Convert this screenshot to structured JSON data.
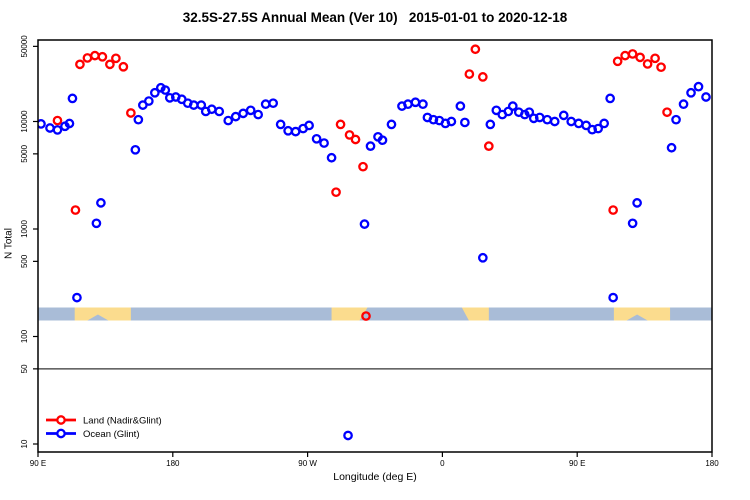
{
  "title": "32.5S-27.5S Annual Mean (Ver 10)   2015-01-01 to 2020-12-18",
  "y_axis": {
    "label": "N Total",
    "ticks": [
      10,
      50,
      100,
      500,
      1000,
      5000,
      10000,
      50000
    ]
  },
  "x_axis": {
    "label": "Longitude (deg E)",
    "ticks": [
      {
        "lon": 90,
        "text": "90 E"
      },
      {
        "lon": 180,
        "text": "180"
      },
      {
        "lon": 270,
        "text": "90 W"
      },
      {
        "lon": 360,
        "text": "0"
      },
      {
        "lon": 450,
        "text": "90 E"
      },
      {
        "lon": 540,
        "text": "180"
      }
    ]
  },
  "legend": [
    {
      "label": "Land (Nadir&Glint)",
      "color": "#FF0000"
    },
    {
      "label": "Ocean (Glint)",
      "color": "#0000FF"
    }
  ],
  "reference_line_n": 50,
  "map_strip": {
    "ocean_color": "#A9BCD7",
    "land_color": "#FBDC8E",
    "bands": [
      {
        "from": 114.5,
        "to": 152,
        "shape": "notch",
        "notch_from": 123,
        "notch_to": 137
      },
      {
        "from": 286,
        "to": 310,
        "shape": "slant-right"
      },
      {
        "from": 373,
        "to": 391,
        "shape": "slant-left"
      },
      {
        "from": 474.5,
        "to": 512,
        "shape": "notch",
        "notch_from": 483,
        "notch_to": 497
      }
    ]
  },
  "chart_data": {
    "type": "scatter",
    "x_unit": "longitude axis degrees (90E wrapping east to 180)",
    "y_scale": "log10",
    "xlim": [
      90,
      540
    ],
    "ylim": [
      8.4,
      57000
    ],
    "legend_position": "bottom-left",
    "series": [
      {
        "name": "Land (Nadir&Glint)",
        "color": "#FF0000",
        "points": [
          [
            103,
            10200
          ],
          [
            115,
            1500
          ],
          [
            118,
            34000
          ],
          [
            123,
            39000
          ],
          [
            128,
            41000
          ],
          [
            133,
            40000
          ],
          [
            138,
            34000
          ],
          [
            142,
            38700
          ],
          [
            147,
            32300
          ],
          [
            152,
            12000
          ],
          [
            289,
            2200
          ],
          [
            292,
            9400
          ],
          [
            298,
            7500
          ],
          [
            302,
            6800
          ],
          [
            307,
            3800
          ],
          [
            309,
            155
          ],
          [
            378,
            27600
          ],
          [
            382,
            47000
          ],
          [
            387,
            26000
          ],
          [
            391,
            5900
          ],
          [
            474,
            1500
          ],
          [
            477,
            36300
          ],
          [
            482,
            41000
          ],
          [
            487,
            42500
          ],
          [
            492,
            39500
          ],
          [
            497,
            34300
          ],
          [
            502,
            38700
          ],
          [
            506,
            32000
          ],
          [
            510,
            12200
          ]
        ]
      },
      {
        "name": "Ocean (Glint)",
        "color": "#0000FF",
        "points": [
          [
            92,
            9500
          ],
          [
            98,
            8700
          ],
          [
            103,
            8350
          ],
          [
            108,
            9030
          ],
          [
            111,
            9580
          ],
          [
            113,
            16400
          ],
          [
            116,
            230
          ],
          [
            129,
            1130
          ],
          [
            132,
            1750
          ],
          [
            155,
            5450
          ],
          [
            157,
            10400
          ],
          [
            160,
            14200
          ],
          [
            164,
            15500
          ],
          [
            168,
            18500
          ],
          [
            172,
            20600
          ],
          [
            175,
            19600
          ],
          [
            178,
            16600
          ],
          [
            182,
            16900
          ],
          [
            186,
            16100
          ],
          [
            190,
            14800
          ],
          [
            194,
            14200
          ],
          [
            199,
            14200
          ],
          [
            202,
            12400
          ],
          [
            206,
            13000
          ],
          [
            211,
            12400
          ],
          [
            217,
            10200
          ],
          [
            222,
            11100
          ],
          [
            227,
            11900
          ],
          [
            232,
            12700
          ],
          [
            237,
            11600
          ],
          [
            242,
            14500
          ],
          [
            247,
            14800
          ],
          [
            252,
            9400
          ],
          [
            257,
            8200
          ],
          [
            262,
            8050
          ],
          [
            267,
            8600
          ],
          [
            271,
            9200
          ],
          [
            276,
            6900
          ],
          [
            281,
            6300
          ],
          [
            286,
            4600
          ],
          [
            297,
            12
          ],
          [
            308,
            1110
          ],
          [
            312,
            5900
          ],
          [
            317,
            7200
          ],
          [
            320,
            6700
          ],
          [
            326,
            9400
          ],
          [
            333,
            13900
          ],
          [
            337,
            14500
          ],
          [
            342,
            15100
          ],
          [
            347,
            14500
          ],
          [
            350,
            10900
          ],
          [
            354,
            10400
          ],
          [
            358,
            10200
          ],
          [
            362,
            9600
          ],
          [
            366,
            10000
          ],
          [
            372,
            13900
          ],
          [
            375,
            9800
          ],
          [
            387,
            540
          ],
          [
            392,
            9400
          ],
          [
            396,
            12700
          ],
          [
            400,
            11600
          ],
          [
            404,
            12400
          ],
          [
            407,
            13900
          ],
          [
            411,
            12200
          ],
          [
            415,
            11600
          ],
          [
            418,
            12200
          ],
          [
            421,
            10700
          ],
          [
            425,
            10900
          ],
          [
            430,
            10400
          ],
          [
            435,
            10000
          ],
          [
            441,
            11400
          ],
          [
            446,
            10000
          ],
          [
            451,
            9600
          ],
          [
            456,
            9200
          ],
          [
            460,
            8400
          ],
          [
            464,
            8600
          ],
          [
            468,
            9600
          ],
          [
            472,
            16400
          ],
          [
            474,
            230
          ],
          [
            487,
            1130
          ],
          [
            490,
            1750
          ],
          [
            513,
            5700
          ],
          [
            516,
            10400
          ],
          [
            521,
            14500
          ],
          [
            526,
            18500
          ],
          [
            531,
            21100
          ],
          [
            536,
            16900
          ]
        ]
      }
    ]
  }
}
